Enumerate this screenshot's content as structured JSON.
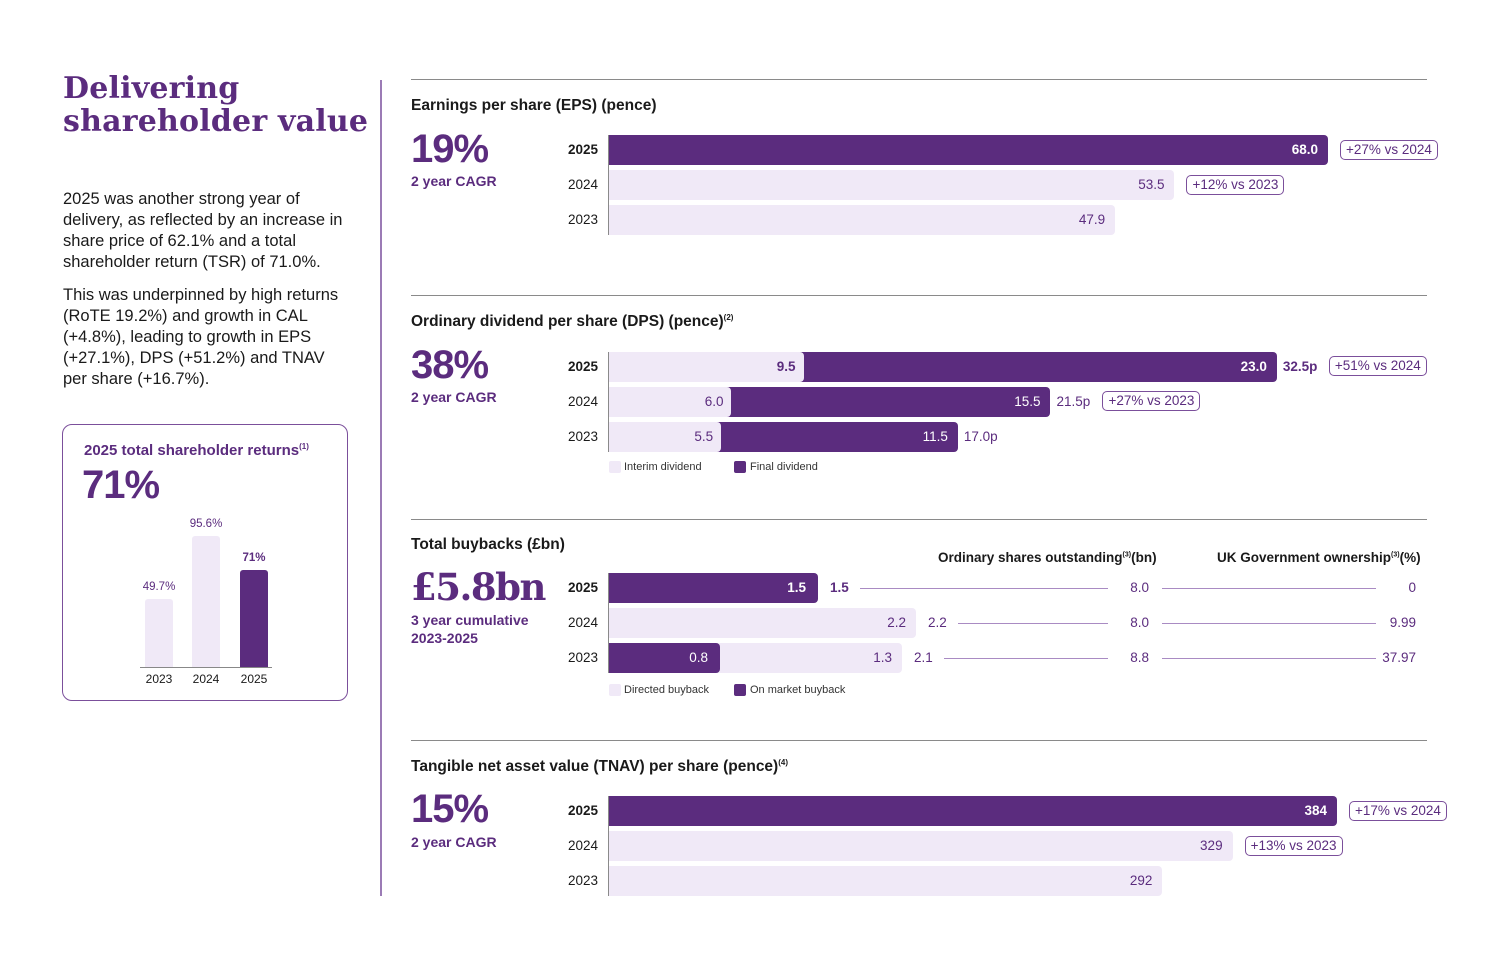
{
  "page": {
    "title_line1": "Delivering",
    "title_line2": "shareholder value",
    "intro_p1": "2025 was another strong year of delivery, as reflected by an increase in share price of 62.1% and a total shareholder return (TSR) of 71.0%.",
    "intro_p2": "This was underpinned by high returns (RoTE 19.2%) and growth in CAL (+4.8%), leading to growth in EPS (+27.1%), DPS (+51.2%) and TNAV per share (+16.7%)."
  },
  "colors": {
    "brand_purple": "#5b2c7e",
    "light_purple": "#f0e9f7",
    "divider": "#9b7bb5"
  },
  "tsr": {
    "title": "2025 total shareholder returns",
    "footnote": "(1)",
    "headline": "71%"
  },
  "eps": {
    "title": "Earnings per share (EPS) (pence)",
    "headline": "19%",
    "sub": "2 year CAGR"
  },
  "dps": {
    "title": "Ordinary dividend per share (DPS) (pence)",
    "footnote": "(2)",
    "headline": "38%",
    "sub": "2 year CAGR"
  },
  "buybacks": {
    "title": "Total buybacks (£bn)",
    "headline": "£5.8bn",
    "sub_line1": "3 year cumulative",
    "sub_line2": "2023-2025",
    "col1_head": "Ordinary shares outstanding",
    "col1_foot": "(3)",
    "col1_unit": "(bn)",
    "col2_head": "UK Government ownership",
    "col2_foot": "(3)",
    "col2_unit": "(%)"
  },
  "tnav": {
    "title": "Tangible net asset value (TNAV) per share (pence)",
    "footnote": "(4)",
    "headline": "15%",
    "sub": "2 year CAGR"
  },
  "chart_data": [
    {
      "id": "tsr",
      "type": "bar",
      "title": "2025 total shareholder returns",
      "categories": [
        "2023",
        "2024",
        "2025"
      ],
      "values": [
        49.7,
        95.6,
        71
      ],
      "labels": [
        "49.7%",
        "95.6%",
        "71%"
      ],
      "highlight": "2025",
      "ylim": [
        0,
        100
      ]
    },
    {
      "id": "eps",
      "type": "bar",
      "orientation": "horizontal",
      "title": "Earnings per share (EPS) (pence)",
      "categories": [
        "2025",
        "2024",
        "2023"
      ],
      "values": [
        68.0,
        53.5,
        47.9
      ],
      "labels": [
        "68.0",
        "53.5",
        "47.9"
      ],
      "annotations": [
        "+27% vs 2024",
        "+12% vs 2023",
        ""
      ],
      "highlight": "2025",
      "xlim": [
        0,
        68
      ]
    },
    {
      "id": "dps",
      "type": "bar",
      "orientation": "horizontal",
      "stacked": true,
      "title": "Ordinary dividend per share (DPS) (pence)",
      "categories": [
        "2025",
        "2024",
        "2023"
      ],
      "series": [
        {
          "name": "Interim dividend",
          "values": [
            9.5,
            6.0,
            5.5
          ],
          "labels": [
            "9.5",
            "6.0",
            "5.5"
          ]
        },
        {
          "name": "Final dividend",
          "values": [
            23.0,
            15.5,
            11.5
          ],
          "labels": [
            "23.0",
            "15.5",
            "11.5"
          ]
        }
      ],
      "totals": [
        "32.5p",
        "21.5p",
        "17.0p"
      ],
      "annotations": [
        "+51% vs 2024",
        "+27% vs 2023",
        ""
      ],
      "legend": [
        "Interim dividend",
        "Final dividend"
      ],
      "xlim": [
        0,
        32.5
      ]
    },
    {
      "id": "buybacks",
      "type": "bar",
      "orientation": "horizontal",
      "stacked": true,
      "title": "Total buybacks (£bn)",
      "categories": [
        "2025",
        "2024",
        "2023"
      ],
      "series": [
        {
          "name": "On market buyback",
          "values": [
            1.5,
            0,
            0.8
          ],
          "labels": [
            "1.5",
            "",
            "0.8"
          ]
        },
        {
          "name": "Directed buyback",
          "values": [
            0,
            2.2,
            1.3
          ],
          "labels": [
            "",
            "2.2",
            "1.3"
          ]
        }
      ],
      "totals": [
        "1.5",
        "2.2",
        "2.1"
      ],
      "shares_outstanding_bn": [
        "8.0",
        "8.0",
        "8.8"
      ],
      "uk_gov_ownership_pct": [
        "0",
        "9.99",
        "37.97"
      ],
      "legend": [
        "Directed buyback",
        "On market buyback"
      ],
      "xlim": [
        0,
        2.2
      ]
    },
    {
      "id": "tnav",
      "type": "bar",
      "orientation": "horizontal",
      "title": "Tangible net asset value (TNAV) per share (pence)",
      "categories": [
        "2025",
        "2024",
        "2023"
      ],
      "values": [
        384,
        329,
        292
      ],
      "labels": [
        "384",
        "329",
        "292"
      ],
      "annotations": [
        "+17% vs 2024",
        "+13% vs 2023",
        ""
      ],
      "highlight": "2025",
      "xlim": [
        0,
        384
      ]
    }
  ]
}
